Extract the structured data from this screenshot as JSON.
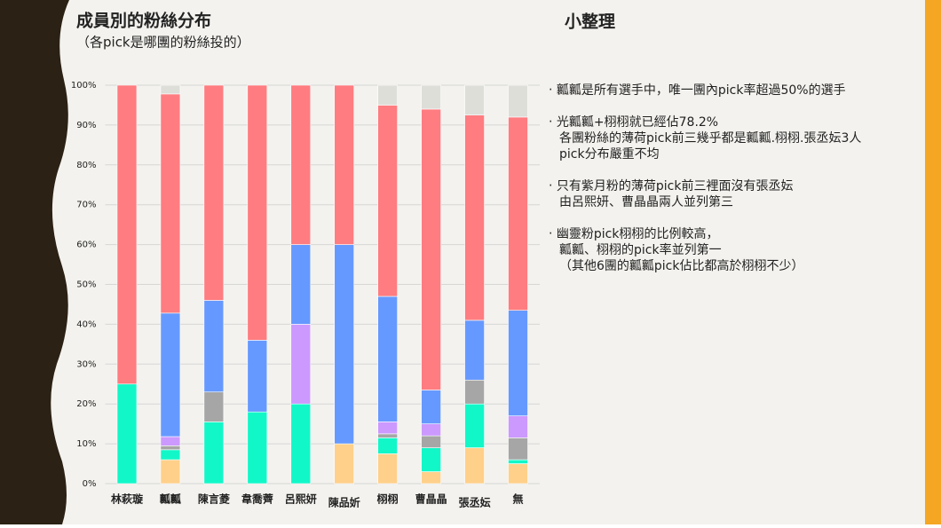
{
  "chart_data": {
    "type": "stacked_bar",
    "title": "成員別的粉絲分布",
    "subtitle": "（各pick是哪團的粉絲投的）",
    "categories": [
      "林萩璇",
      "瓤瓤",
      "陳言菱",
      "韋喬薺",
      "呂熙妍",
      "陳品妡",
      "栩栩",
      "曹晶晶",
      "張丞妘",
      "無"
    ],
    "series": [
      {
        "color": "#ffd08a",
        "values": [
          0,
          6,
          0,
          0,
          0,
          10,
          7.5,
          3,
          9,
          5
        ]
      },
      {
        "color": "#12f7c8",
        "values": [
          25,
          2.5,
          15.5,
          18,
          20,
          0,
          4,
          6,
          11,
          1
        ]
      },
      {
        "color": "#a6a6a6",
        "values": [
          0,
          1,
          7.5,
          0,
          0,
          0,
          1,
          3,
          6,
          5.5
        ]
      },
      {
        "color": "#cc99ff",
        "values": [
          0,
          2.3,
          0,
          0,
          20,
          0,
          3,
          3,
          0,
          5.5
        ]
      },
      {
        "color": "#6699ff",
        "values": [
          0,
          31,
          23,
          18,
          20,
          50,
          31.5,
          8.5,
          15,
          26.5
        ]
      },
      {
        "color": "#ff7c80",
        "values": [
          75,
          55,
          54,
          64,
          40,
          40,
          48,
          70.5,
          51.5,
          48.5
        ]
      },
      {
        "color": "#deded9",
        "values": [
          0,
          2.2,
          0,
          0,
          0,
          0,
          5,
          6,
          7.5,
          8
        ]
      }
    ],
    "ylim": [
      0,
      100
    ],
    "yticks": [
      {
        "value": 0,
        "label": "0%"
      },
      {
        "value": 10,
        "label": "10%"
      },
      {
        "value": 20,
        "label": "20%"
      },
      {
        "value": 30,
        "label": "30%"
      },
      {
        "value": 40,
        "label": "40%"
      },
      {
        "value": 50,
        "label": "50%"
      },
      {
        "value": 60,
        "label": "60%"
      },
      {
        "value": 70,
        "label": "70%"
      },
      {
        "value": 80,
        "label": "80%"
      },
      {
        "value": 90,
        "label": "90%"
      },
      {
        "value": 100,
        "label": "100%"
      }
    ],
    "grid": true
  },
  "notes": {
    "title": "小整理",
    "bullets": [
      [
        "‧ 瓤瓤是所有選手中，唯一團內pick率超過50%的選手"
      ],
      [
        "‧ 光瓤瓤+栩栩就已經佔78.2%",
        "各團粉絲的薄荷pick前三幾乎都是瓤瓤.栩栩.張丞妘3人",
        "pick分布嚴重不均"
      ],
      [
        "‧ 只有紫月粉的薄荷pick前三裡面沒有張丞妘",
        "由呂熙妍、曹晶晶兩人並列第三"
      ],
      [
        "‧ 幽靈粉pick栩栩的比例較高，",
        "瓤瓤、栩栩的pick率並列第一",
        "（其他6團的瓤瓤pick佔比都高於栩栩不少）"
      ]
    ]
  }
}
